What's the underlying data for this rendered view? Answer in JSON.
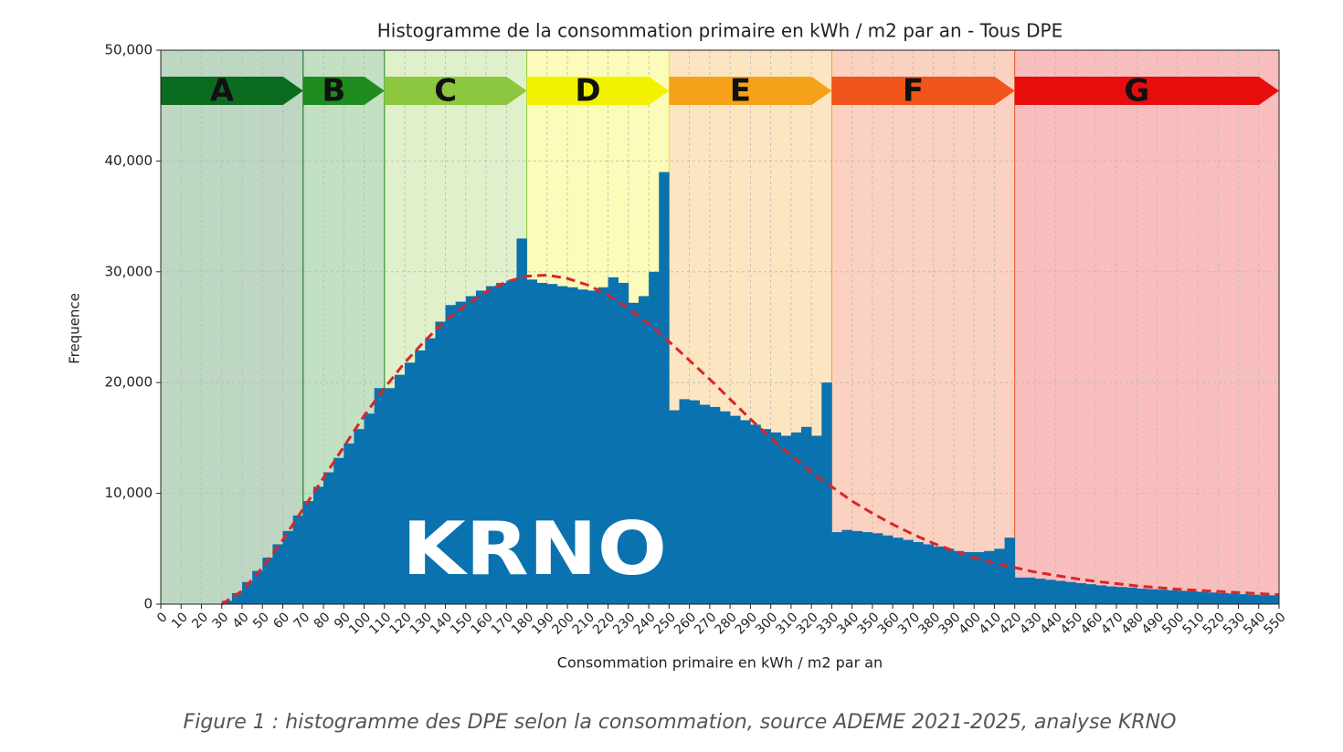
{
  "chart_data": {
    "type": "histogram",
    "title": "Histogramme de la consommation primaire en kWh / m2 par an - Tous DPE",
    "xlabel": "Consommation primaire en kWh / m2 par an",
    "ylabel": "Frequence",
    "caption": "Figure 1 : histogramme des DPE selon la consommation, source ADEME 2021-2025, analyse KRNO",
    "watermark": "KRNO",
    "color": "#0b72b0",
    "bins": [
      0,
      5,
      10,
      15,
      20,
      25,
      30,
      35,
      40,
      45,
      50,
      55,
      60,
      65,
      70,
      75,
      80,
      85,
      90,
      95,
      100,
      105,
      110,
      115,
      120,
      125,
      130,
      135,
      140,
      145,
      150,
      155,
      160,
      165,
      170,
      175,
      180,
      185,
      190,
      195,
      200,
      205,
      210,
      215,
      220,
      225,
      230,
      235,
      240,
      245,
      250,
      255,
      260,
      265,
      270,
      275,
      280,
      285,
      290,
      295,
      300,
      305,
      310,
      315,
      320,
      325,
      330,
      335,
      340,
      345,
      350,
      355,
      360,
      365,
      370,
      375,
      380,
      385,
      390,
      395,
      400,
      405,
      410,
      415,
      420,
      425,
      430,
      435,
      440,
      445,
      450,
      455,
      460,
      465,
      470,
      475,
      480,
      485,
      490,
      495,
      500,
      505,
      510,
      515,
      520,
      525,
      530,
      535,
      540,
      545,
      550
    ],
    "counts": [
      0,
      0,
      0,
      0,
      0,
      0,
      300,
      1000,
      2000,
      3000,
      4200,
      5400,
      6600,
      8000,
      9300,
      10600,
      11900,
      13200,
      14500,
      15800,
      17200,
      19500,
      19500,
      20700,
      21800,
      22900,
      24000,
      25500,
      27000,
      27300,
      27800,
      28300,
      28700,
      29000,
      29200,
      33000,
      29300,
      29000,
      28900,
      28700,
      28600,
      28400,
      28300,
      28600,
      29500,
      29000,
      27200,
      27800,
      30000,
      39000,
      17500,
      18500,
      18400,
      18000,
      17800,
      17400,
      17000,
      16600,
      16200,
      15800,
      15500,
      15200,
      15500,
      16000,
      15200,
      20000,
      6500,
      6700,
      6600,
      6500,
      6400,
      6200,
      6000,
      5800,
      5600,
      5400,
      5200,
      5000,
      4800,
      4700,
      4700,
      4800,
      5000,
      6000,
      2400,
      2400,
      2300,
      2200,
      2100,
      2000,
      1900,
      1800,
      1700,
      1600,
      1550,
      1500,
      1400,
      1350,
      1300,
      1250,
      1200,
      1150,
      1100,
      1050,
      1000,
      950,
      900,
      850,
      800,
      800
    ],
    "fit": {
      "color": "#d62728",
      "x": [
        30,
        40,
        50,
        60,
        70,
        80,
        90,
        100,
        110,
        120,
        130,
        140,
        150,
        160,
        170,
        180,
        190,
        200,
        210,
        220,
        230,
        240,
        250,
        260,
        270,
        280,
        290,
        300,
        310,
        320,
        330,
        340,
        350,
        360,
        370,
        380,
        390,
        400,
        410,
        420,
        430,
        440,
        450,
        460,
        470,
        480,
        490,
        500,
        510,
        520,
        530,
        540,
        550
      ],
      "values": [
        0,
        1200,
        3300,
        5800,
        8600,
        11400,
        14200,
        17000,
        19500,
        21800,
        23800,
        25600,
        27000,
        28200,
        29100,
        29600,
        29700,
        29400,
        28800,
        27900,
        26700,
        25300,
        23700,
        22000,
        20300,
        18500,
        16700,
        15000,
        13400,
        11900,
        10600,
        9300,
        8200,
        7200,
        6300,
        5500,
        4800,
        4200,
        3700,
        3300,
        2900,
        2600,
        2300,
        2050,
        1850,
        1650,
        1500,
        1350,
        1250,
        1150,
        1050,
        950,
        850
      ]
    },
    "classes": [
      {
        "label": "A",
        "start": 0,
        "end": 70,
        "color": "#0b6b1e"
      },
      {
        "label": "B",
        "start": 70,
        "end": 110,
        "color": "#1e8c1e"
      },
      {
        "label": "C",
        "start": 110,
        "end": 180,
        "color": "#8dc63f"
      },
      {
        "label": "D",
        "start": 180,
        "end": 250,
        "color": "#f2f200"
      },
      {
        "label": "E",
        "start": 250,
        "end": 330,
        "color": "#f5a21a"
      },
      {
        "label": "F",
        "start": 330,
        "end": 420,
        "color": "#f0541a"
      },
      {
        "label": "G",
        "start": 420,
        "end": 550,
        "color": "#e60d0d"
      }
    ],
    "xlim": [
      0,
      550
    ],
    "ylim": [
      0,
      50000
    ],
    "xticks": [
      0,
      10,
      20,
      30,
      40,
      50,
      60,
      70,
      80,
      90,
      100,
      110,
      120,
      130,
      140,
      150,
      160,
      170,
      180,
      190,
      200,
      210,
      220,
      230,
      240,
      250,
      260,
      270,
      280,
      290,
      300,
      310,
      320,
      330,
      340,
      350,
      360,
      370,
      380,
      390,
      400,
      410,
      420,
      430,
      440,
      450,
      460,
      470,
      480,
      490,
      500,
      510,
      520,
      530,
      540,
      550
    ],
    "yticks": [
      0,
      {
        "value": 10000,
        "label": "10,000"
      },
      {
        "value": 20000,
        "label": "20,000"
      },
      {
        "value": 30000,
        "label": "30,000"
      },
      {
        "value": 40000,
        "label": "40,000"
      },
      {
        "value": 50000,
        "label": "50,000"
      }
    ],
    "grid": true
  }
}
